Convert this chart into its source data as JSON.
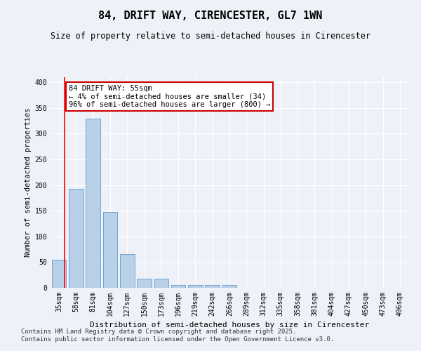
{
  "title": "84, DRIFT WAY, CIRENCESTER, GL7 1WN",
  "subtitle": "Size of property relative to semi-detached houses in Cirencester",
  "xlabel": "Distribution of semi-detached houses by size in Cirencester",
  "ylabel": "Number of semi-detached properties",
  "categories": [
    "35sqm",
    "58sqm",
    "81sqm",
    "104sqm",
    "127sqm",
    "150sqm",
    "173sqm",
    "196sqm",
    "219sqm",
    "242sqm",
    "266sqm",
    "289sqm",
    "312sqm",
    "335sqm",
    "358sqm",
    "381sqm",
    "404sqm",
    "427sqm",
    "450sqm",
    "473sqm",
    "496sqm"
  ],
  "values": [
    55,
    193,
    330,
    147,
    65,
    18,
    18,
    6,
    5,
    5,
    5,
    0,
    0,
    0,
    0,
    0,
    0,
    0,
    0,
    0,
    0
  ],
  "bar_color": "#b8d0e8",
  "bar_edge_color": "#6699cc",
  "annotation_text": "84 DRIFT WAY: 55sqm\n← 4% of semi-detached houses are smaller (34)\n96% of semi-detached houses are larger (800) →",
  "annotation_box_color": "#ffffff",
  "annotation_box_edge": "#cc0000",
  "red_line_x": 0.32,
  "ylim": [
    0,
    410
  ],
  "yticks": [
    0,
    50,
    100,
    150,
    200,
    250,
    300,
    350,
    400
  ],
  "footer_line1": "Contains HM Land Registry data © Crown copyright and database right 2025.",
  "footer_line2": "Contains public sector information licensed under the Open Government Licence v3.0.",
  "bg_color": "#eef2f8",
  "plot_bg_color": "#eef2f8",
  "grid_color": "#ffffff",
  "title_fontsize": 11,
  "subtitle_fontsize": 8.5,
  "tick_fontsize": 7,
  "ylabel_fontsize": 7.5,
  "xlabel_fontsize": 8,
  "annotation_fontsize": 7.5,
  "footer_fontsize": 6.5
}
